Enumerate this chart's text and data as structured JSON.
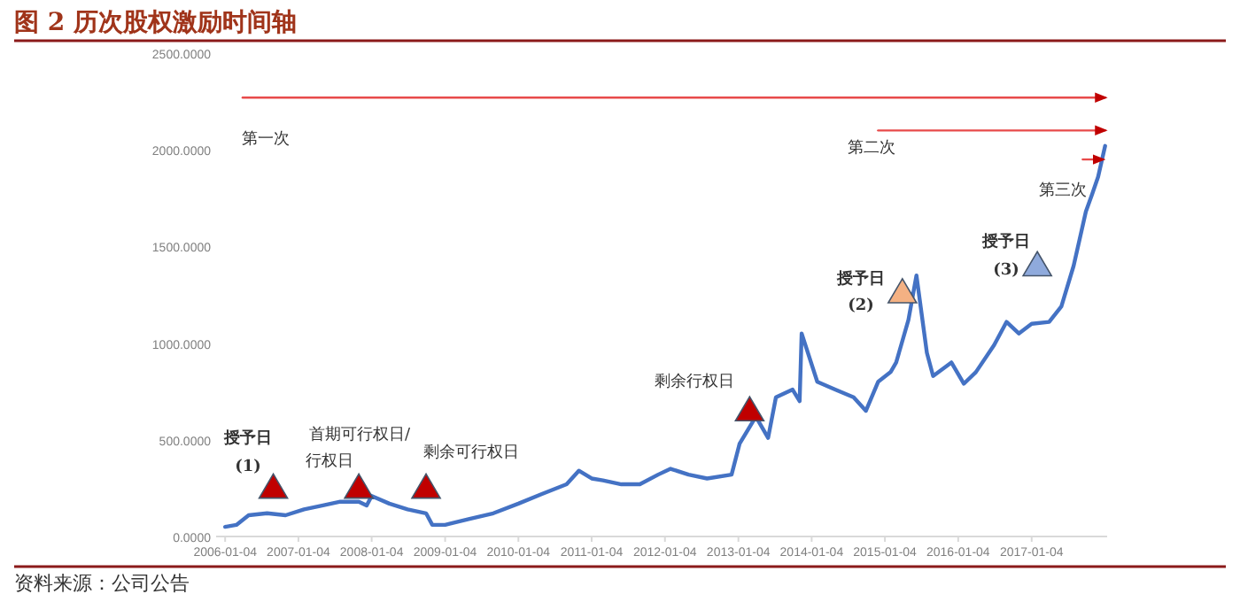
{
  "chart_data": {
    "type": "line",
    "title": "图 2 历次股权激励时间轴",
    "xlim": [
      "2005-11-20",
      "2018-01-15"
    ],
    "xticks": [
      "2006-01-04",
      "2007-01-04",
      "2008-01-04",
      "2009-01-04",
      "2010-01-04",
      "2011-01-04",
      "2012-01-04",
      "2013-01-04",
      "2014-01-04",
      "2015-01-04",
      "2016-01-04",
      "2017-01-04"
    ],
    "ylim": [
      0,
      2500
    ],
    "yticks": [
      {
        "value": 0,
        "label": "0.0000"
      },
      {
        "value": 500,
        "label": "500.0000"
      },
      {
        "value": 1000,
        "label": "1000.0000"
      },
      {
        "value": 1500,
        "label": "1500.0000"
      },
      {
        "value": 2000,
        "label": "2000.0000"
      },
      {
        "value": 2500,
        "label": "2500.0000"
      }
    ],
    "grid": false,
    "series": [
      {
        "color": "#4472c4",
        "marker": "none",
        "x": [
          "2006-01-04",
          "2006-03-01",
          "2006-05-01",
          "2006-08-01",
          "2006-11-01",
          "2007-02-01",
          "2007-05-01",
          "2007-08-01",
          "2007-11-01",
          "2007-12-10",
          "2008-01-04",
          "2008-04-01",
          "2008-07-01",
          "2008-10-01",
          "2008-11-01",
          "2009-01-04",
          "2009-05-01",
          "2009-09-01",
          "2010-01-04",
          "2010-05-01",
          "2010-09-01",
          "2010-11-01",
          "2011-01-04",
          "2011-03-01",
          "2011-06-01",
          "2011-09-01",
          "2011-12-01",
          "2012-02-01",
          "2012-05-01",
          "2012-08-01",
          "2012-12-01",
          "2013-01-10",
          "2013-04-01",
          "2013-06-01",
          "2013-07-10",
          "2013-10-01",
          "2013-11-05",
          "2013-11-15",
          "2014-02-01",
          "2014-05-01",
          "2014-08-01",
          "2014-10-01",
          "2014-12-01",
          "2015-02-01",
          "2015-03-01",
          "2015-05-01",
          "2015-06-10",
          "2015-08-01",
          "2015-09-01",
          "2015-12-01",
          "2016-02-01",
          "2016-04-01",
          "2016-07-01",
          "2016-09-01",
          "2016-11-01",
          "2017-01-04",
          "2017-04-01",
          "2017-06-01",
          "2017-08-01",
          "2017-10-01",
          "2017-11-01",
          "2017-12-01",
          "2018-01-05"
        ],
        "values": [
          50,
          60,
          110,
          120,
          110,
          140,
          160,
          180,
          180,
          160,
          210,
          170,
          140,
          120,
          60,
          60,
          90,
          120,
          170,
          220,
          270,
          340,
          300,
          290,
          270,
          270,
          320,
          350,
          320,
          300,
          320,
          480,
          620,
          510,
          720,
          760,
          700,
          1050,
          800,
          760,
          720,
          650,
          800,
          850,
          900,
          1120,
          1350,
          950,
          830,
          900,
          790,
          850,
          990,
          1110,
          1050,
          1100,
          1110,
          1190,
          1400,
          1680,
          1770,
          1860,
          2020
        ]
      },
      {
        "type": "scatter",
        "marker": "triangle",
        "colors": [
          "#c00000",
          "#c00000",
          "#c00000",
          "#c00000",
          "#f4b183",
          "#8faadc"
        ],
        "x": [
          "2006-09-01",
          "2007-11-01",
          "2008-10-01",
          "2013-03-01",
          "2015-04-01",
          "2017-02-01"
        ],
        "values": [
          250,
          250,
          250,
          650,
          1260,
          1400
        ]
      },
      {
        "type": "line",
        "color": "#e84a4a",
        "x": [
          "2006-04-01",
          "2018-01-05"
        ],
        "values": [
          2270,
          2270
        ]
      },
      {
        "type": "line",
        "color": "#e84a4a",
        "x": [
          "2014-12-01",
          "2018-01-05"
        ],
        "values": [
          2100,
          2100
        ]
      },
      {
        "type": "line",
        "color": "#e84a4a",
        "x": [
          "2017-09-15",
          "2017-12-25"
        ],
        "values": [
          1950,
          1950
        ]
      }
    ],
    "annotations": [
      "授予日",
      "(1)",
      "首期可行权日/",
      "行权日",
      "剩余可行权日",
      "剩余行权日",
      "授予日",
      "(2)",
      "授予日",
      "(3)",
      "第一次",
      "第二次",
      "第三次",
      "资料来源：公司公告"
    ]
  }
}
